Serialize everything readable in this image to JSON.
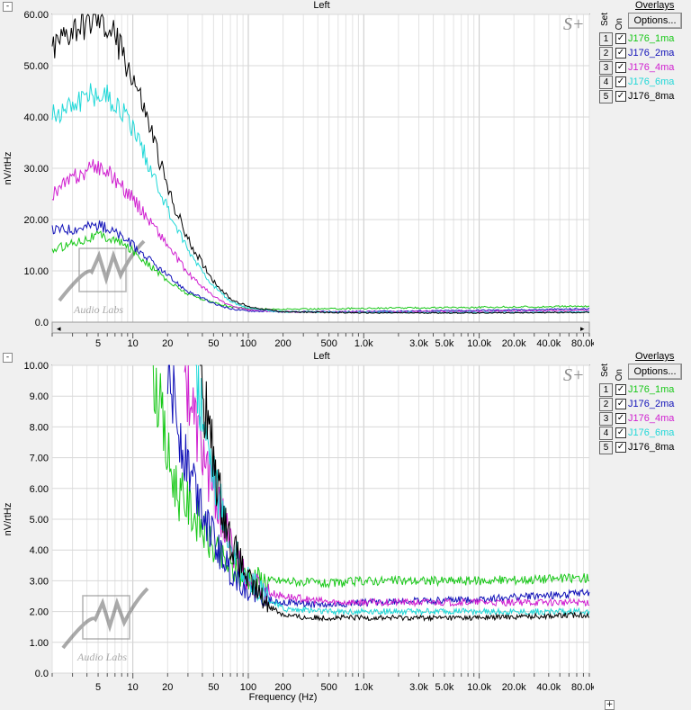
{
  "colors": {
    "1ma": "#18c818",
    "2ma": "#1010b8",
    "4ma": "#d020d0",
    "6ma": "#20d8d8",
    "8ma": "#000000"
  },
  "panels": [
    {
      "title": "Left",
      "logo_s": "S+",
      "watermark": "Audio Labs",
      "overlays": {
        "title": "Overlays",
        "set_header": "Set",
        "on_header": "On",
        "options_label": "Options...",
        "items": [
          {
            "num": "1",
            "name": "J176_1ma",
            "color": "#18c818"
          },
          {
            "num": "2",
            "name": "J176_2ma",
            "color": "#1010b8"
          },
          {
            "num": "3",
            "name": "J176_4ma",
            "color": "#d020d0"
          },
          {
            "num": "4",
            "name": "J176_6ma",
            "color": "#20d8d8"
          },
          {
            "num": "5",
            "name": "J176_8ma",
            "color": "#000000"
          }
        ]
      },
      "chart": {
        "ylabel": "nV/rtHz",
        "xlabel": "",
        "y_ticks": [
          "0.0",
          "10.00",
          "20.00",
          "30.00",
          "40.00",
          "50.00",
          "60.00"
        ],
        "x_ticks": [
          "5",
          "10",
          "20",
          "50",
          "100",
          "200",
          "500",
          "1.0k",
          "3.0k",
          "5.0k",
          "10.0k",
          "20.0k",
          "40.0k",
          "80.0k"
        ],
        "show_scrollbar": true
      }
    },
    {
      "title": "Left",
      "logo_s": "S+",
      "watermark": "Audio Labs",
      "overlays": {
        "title": "Overlays",
        "set_header": "Set",
        "on_header": "On",
        "options_label": "Options...",
        "items": [
          {
            "num": "1",
            "name": "J176_1ma",
            "color": "#18c818"
          },
          {
            "num": "2",
            "name": "J176_2ma",
            "color": "#1010b8"
          },
          {
            "num": "3",
            "name": "J176_4ma",
            "color": "#d020d0"
          },
          {
            "num": "4",
            "name": "J176_6ma",
            "color": "#20d8d8"
          },
          {
            "num": "5",
            "name": "J176_8ma",
            "color": "#000000"
          }
        ]
      },
      "chart": {
        "ylabel": "nV/rtHz",
        "xlabel": "Frequency (Hz)",
        "y_ticks": [
          "0.0",
          "1.00",
          "2.00",
          "3.00",
          "4.00",
          "5.00",
          "6.00",
          "7.00",
          "8.00",
          "9.00",
          "10.00"
        ],
        "x_ticks": [
          "5",
          "10",
          "20",
          "50",
          "100",
          "200",
          "500",
          "1.0k",
          "3.0k",
          "5.0k",
          "10.0k",
          "20.0k",
          "40.0k",
          "80.0k"
        ],
        "show_scrollbar": false
      }
    }
  ],
  "chart_data": [
    {
      "type": "line",
      "title": "Left",
      "ylabel": "nV/rtHz",
      "xscale": "log",
      "xlim": [
        2,
        90000
      ],
      "ylim": [
        0,
        60
      ],
      "grid": true,
      "legend": "right",
      "series": [
        {
          "name": "J176_1ma",
          "color": "#18c818",
          "x": [
            2,
            3,
            5,
            7,
            10,
            15,
            20,
            30,
            50,
            70,
            100,
            200,
            1000,
            10000,
            90000
          ],
          "y": [
            14,
            15.5,
            17,
            16,
            14,
            10.5,
            8,
            5.5,
            3.8,
            3.0,
            2.6,
            2.5,
            2.7,
            2.9,
            3.1
          ]
        },
        {
          "name": "J176_2ma",
          "color": "#1010b8",
          "x": [
            2,
            3,
            5,
            7,
            10,
            15,
            20,
            30,
            50,
            70,
            100,
            200,
            1000,
            10000,
            90000
          ],
          "y": [
            18,
            18.2,
            19,
            17.5,
            15,
            11.5,
            9,
            6,
            3.6,
            2.6,
            2.2,
            2.0,
            2.1,
            2.3,
            2.6
          ]
        },
        {
          "name": "J176_4ma",
          "color": "#d020d0",
          "x": [
            2,
            3,
            5,
            7,
            10,
            15,
            20,
            30,
            50,
            70,
            100,
            200,
            1000,
            10000,
            90000
          ],
          "y": [
            25,
            28,
            30.5,
            28,
            24,
            19,
            15,
            9.5,
            5,
            3.2,
            2.4,
            2.0,
            2.0,
            2.1,
            2.3
          ]
        },
        {
          "name": "J176_6ma",
          "color": "#20d8d8",
          "x": [
            2,
            3,
            5,
            7,
            10,
            15,
            20,
            30,
            50,
            70,
            100,
            200,
            1000,
            10000,
            90000
          ],
          "y": [
            40,
            43,
            45,
            43,
            38,
            29,
            22,
            14,
            7,
            4,
            2.7,
            2.0,
            1.9,
            1.9,
            2.0
          ]
        },
        {
          "name": "J176_8ma",
          "color": "#000000",
          "x": [
            2,
            3,
            5,
            7,
            10,
            15,
            20,
            30,
            50,
            70,
            100,
            200,
            1000,
            10000,
            90000
          ],
          "y": [
            53,
            57,
            59,
            56,
            48,
            36,
            26,
            16,
            8,
            4.5,
            3.0,
            2.0,
            1.8,
            1.8,
            1.9
          ]
        }
      ]
    },
    {
      "type": "line",
      "title": "Left",
      "xlabel": "Frequency (Hz)",
      "ylabel": "nV/rtHz",
      "xscale": "log",
      "xlim": [
        2,
        90000
      ],
      "ylim": [
        0,
        10
      ],
      "grid": true,
      "legend": "right",
      "series": [
        {
          "name": "J176_1ma",
          "color": "#18c818",
          "x": [
            15,
            20,
            25,
            30,
            40,
            50,
            70,
            100,
            150,
            200,
            500,
            1000,
            10000,
            90000
          ],
          "y": [
            10,
            7,
            5.8,
            5.5,
            4.7,
            4.0,
            3.4,
            3.1,
            3.0,
            3.0,
            2.9,
            3.0,
            3.0,
            3.1
          ]
        },
        {
          "name": "J176_2ma",
          "color": "#1010b8",
          "x": [
            20,
            25,
            30,
            40,
            50,
            70,
            100,
            150,
            200,
            500,
            1000,
            10000,
            90000
          ],
          "y": [
            10,
            8,
            6.8,
            5.5,
            4.3,
            3.3,
            2.7,
            2.4,
            2.3,
            2.2,
            2.3,
            2.4,
            2.6
          ]
        },
        {
          "name": "J176_4ma",
          "color": "#d020d0",
          "x": [
            28,
            35,
            40,
            50,
            60,
            70,
            100,
            150,
            200,
            500,
            1000,
            10000,
            90000
          ],
          "y": [
            10,
            8,
            7.2,
            6,
            5,
            4.2,
            3.0,
            2.6,
            2.5,
            2.3,
            2.3,
            2.3,
            2.3
          ]
        },
        {
          "name": "J176_6ma",
          "color": "#20d8d8",
          "x": [
            35,
            45,
            55,
            70,
            100,
            150,
            200,
            500,
            1000,
            10000,
            90000
          ],
          "y": [
            10,
            7.5,
            5.8,
            4.2,
            3.0,
            2.4,
            2.1,
            2.0,
            2.0,
            2.0,
            2.0
          ]
        },
        {
          "name": "J176_8ma",
          "color": "#000000",
          "x": [
            38,
            45,
            55,
            70,
            100,
            150,
            200,
            300,
            500,
            1000,
            10000,
            90000
          ],
          "y": [
            10,
            8,
            6,
            4.3,
            3.0,
            2.2,
            1.9,
            1.8,
            1.8,
            1.8,
            1.8,
            1.9
          ]
        }
      ]
    }
  ]
}
